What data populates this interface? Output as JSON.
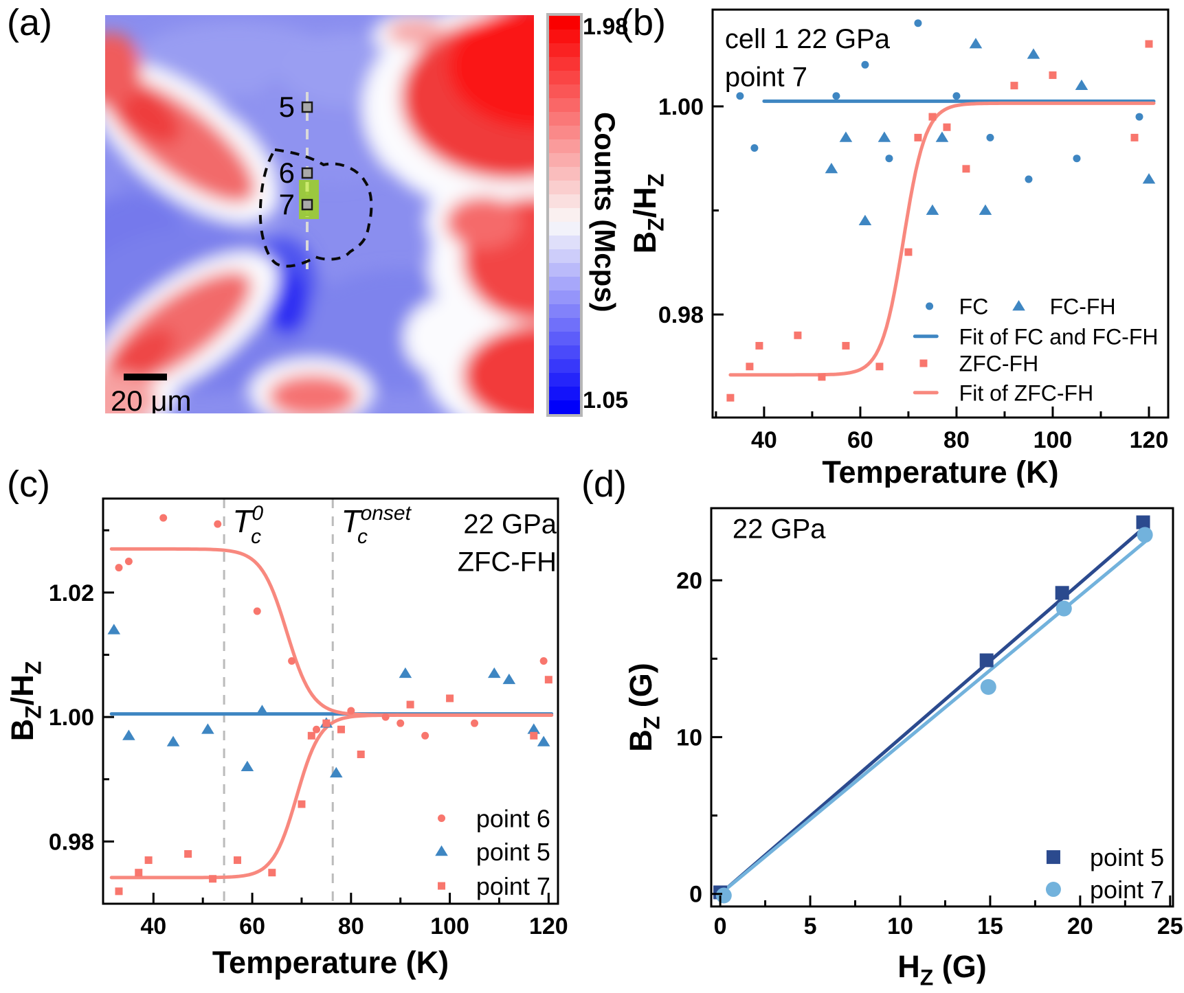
{
  "panels": {
    "a": {
      "letter": "(a)",
      "scale_bar_label": "20 μm",
      "marker_labels": [
        "5",
        "6",
        "7"
      ],
      "colorbar": {
        "title": "Counts (Mcps)",
        "max": "1.98",
        "min": "1.05"
      }
    },
    "b": {
      "letter": "(b)"
    },
    "c": {
      "letter": "(c)"
    },
    "d": {
      "letter": "(d)"
    }
  },
  "colors": {
    "blue": "#3e86c2",
    "salmon": "#f8766d",
    "salmon_fit": "#f8887e",
    "navy": "#2b4a8e",
    "light_blue": "#72b2dc",
    "vline_gray": "#bbbbbb"
  },
  "chart_data": [
    {
      "id": "a",
      "type": "heatmap",
      "description_visible_text": [],
      "colorbar": {
        "label": "Counts (Mcps)",
        "min": 1.05,
        "max": 1.98
      },
      "scale_bar": "20 μm",
      "points_of_interest": [
        "5",
        "6",
        "7"
      ]
    },
    {
      "id": "b",
      "type": "scatter",
      "annotation_lines": [
        "cell 1 22 GPa",
        "point 7"
      ],
      "ann_layout": {
        "anchor": "start",
        "fx": 0.027,
        "fy": 0.094,
        "step": 0.094
      },
      "xlabel_rich": [
        {
          "t": "Temperature (K)"
        }
      ],
      "ylabel_rich": [
        {
          "t": "B"
        },
        {
          "t": "Z",
          "s": "sub"
        },
        {
          "t": "/H"
        },
        {
          "t": "Z",
          "s": "sub"
        }
      ],
      "xlim": [
        29.3,
        124
      ],
      "ylim": [
        0.9701,
        1.0093
      ],
      "xticks": {
        "major": [
          [
            40,
            "40"
          ],
          [
            60,
            "60"
          ],
          [
            80,
            "80"
          ],
          [
            100,
            "100"
          ],
          [
            120,
            "120"
          ]
        ],
        "minor": [
          30,
          50,
          70,
          90,
          110
        ]
      },
      "yticks": {
        "major": [
          [
            0.98,
            "0.98"
          ],
          [
            1.0,
            "1.00"
          ]
        ],
        "minor": [
          0.99
        ]
      },
      "series": [
        {
          "kind": "line",
          "name": "Fit of FC and FC-FH",
          "color": "blue",
          "lw": 5,
          "x": [
            40,
            121
          ],
          "y": [
            1.0005,
            1.0005
          ]
        },
        {
          "kind": "sigmoid",
          "name": "Fit of ZFC-FH",
          "color": "salmon_fit",
          "lw": 5,
          "from": 0.9742,
          "to": 1.0003,
          "mid": 69,
          "w": 2.3,
          "xrange": [
            33,
            121
          ]
        },
        {
          "kind": "scatter",
          "name": "FC",
          "marker": "circle",
          "size": 11,
          "color": "blue",
          "points": [
            [
              35,
              1.001
            ],
            [
              38,
              0.996
            ],
            [
              55,
              1.001
            ],
            [
              61,
              1.004
            ],
            [
              66,
              0.995
            ],
            [
              72,
              1.008
            ],
            [
              80,
              1.001
            ],
            [
              87,
              0.997
            ],
            [
              95,
              0.993
            ],
            [
              105,
              0.995
            ],
            [
              118,
              0.999
            ]
          ]
        },
        {
          "kind": "scatter",
          "name": "FC-FH",
          "marker": "triangle",
          "size": 15,
          "color": "blue",
          "points": [
            [
              54,
              0.994
            ],
            [
              57,
              0.997
            ],
            [
              61,
              0.989
            ],
            [
              65,
              0.997
            ],
            [
              75,
              0.99
            ],
            [
              77,
              0.997
            ],
            [
              84,
              1.006
            ],
            [
              86,
              0.99
            ],
            [
              96,
              1.005
            ],
            [
              106,
              1.002
            ],
            [
              120,
              0.993
            ]
          ]
        },
        {
          "kind": "scatter",
          "name": "ZFC-FH",
          "marker": "square",
          "size": 11,
          "color": "salmon",
          "points": [
            [
              33,
              0.972
            ],
            [
              37,
              0.975
            ],
            [
              39,
              0.977
            ],
            [
              47,
              0.978
            ],
            [
              52,
              0.974
            ],
            [
              57,
              0.977
            ],
            [
              64,
              0.975
            ],
            [
              70,
              0.986
            ],
            [
              72,
              0.997
            ],
            [
              75,
              0.999
            ],
            [
              78,
              0.998
            ],
            [
              82,
              0.994
            ],
            [
              92,
              1.002
            ],
            [
              100,
              1.003
            ],
            [
              117,
              0.997
            ],
            [
              120,
              1.006
            ]
          ]
        }
      ],
      "legend": [
        {
          "marker": "circle",
          "color": "blue",
          "label": "FC",
          "size": 11,
          "mx": 0.476,
          "tx": 0.541,
          "fy": 0.727
        },
        {
          "marker": "triangle",
          "color": "blue",
          "label": "FC-FH",
          "size": 15,
          "mx": 0.672,
          "tx": 0.74,
          "fy": 0.727
        },
        {
          "marker": "hline",
          "color": "blue",
          "label": "Fit of FC and FC-FH",
          "mx": 0.468,
          "tx": 0.541,
          "fy": 0.801
        },
        {
          "marker": "square",
          "color": "salmon",
          "label": "ZFC-FH",
          "size": 11,
          "mx": 0.463,
          "tx": 0.541,
          "fy": 0.867
        },
        {
          "marker": "hline",
          "color": "salmon_fit",
          "label": "Fit of ZFC-FH",
          "mx": 0.468,
          "tx": 0.541,
          "fy": 0.939
        }
      ]
    },
    {
      "id": "c",
      "type": "scatter",
      "annotation_lines": [
        "22 GPa",
        "ZFC-FH"
      ],
      "ann_layout": {
        "anchor": "end",
        "fx": 0.997,
        "fy": 0.086,
        "step": 0.093
      },
      "xlabel_rich": [
        {
          "t": "Temperature (K)"
        }
      ],
      "ylabel_rich": [
        {
          "t": "B"
        },
        {
          "t": "Z",
          "s": "sub"
        },
        {
          "t": "/H"
        },
        {
          "t": "Z",
          "s": "sub"
        }
      ],
      "xlim": [
        29.8,
        121.9
      ],
      "ylim": [
        0.97,
        1.0351
      ],
      "xticks": {
        "major": [
          [
            40,
            "40"
          ],
          [
            60,
            "60"
          ],
          [
            80,
            "80"
          ],
          [
            100,
            "100"
          ],
          [
            120,
            "120"
          ]
        ],
        "minor": [
          50,
          70,
          90,
          110
        ]
      },
      "yticks": {
        "major": [
          [
            0.98,
            "0.98"
          ],
          [
            1.0,
            "1.00"
          ],
          [
            1.02,
            "1.02"
          ]
        ],
        "minor": [
          0.99,
          1.01,
          1.03
        ]
      },
      "vlines": [
        {
          "x": 54.3
        },
        {
          "x": 76.3
        }
      ],
      "vline_labels": [
        {
          "base": "T",
          "sub": "c",
          "sup": "0",
          "tx": 56,
          "fy": 0.083
        },
        {
          "base": "T",
          "sub": "c",
          "sup": "onset",
          "tx": 78,
          "fy": 0.083
        }
      ],
      "series": [
        {
          "kind": "line",
          "color": "blue",
          "lw": 5,
          "x": [
            31.5,
            120.6
          ],
          "y": [
            1.0005,
            1.0005
          ]
        },
        {
          "kind": "sigmoid",
          "color": "salmon_fit",
          "lw": 5,
          "from": 1.027,
          "to": 1.0003,
          "mid": 67,
          "w": 2.6,
          "xrange": [
            31.5,
            120.6
          ]
        },
        {
          "kind": "sigmoid",
          "color": "salmon_fit",
          "lw": 5,
          "from": 0.9742,
          "to": 1.0003,
          "mid": 69,
          "w": 2.4,
          "xrange": [
            31.5,
            120.6
          ]
        },
        {
          "kind": "scatter",
          "name": "point 6",
          "marker": "circle",
          "size": 11,
          "color": "salmon",
          "points": [
            [
              33,
              1.024
            ],
            [
              35,
              1.025
            ],
            [
              42,
              1.032
            ],
            [
              53,
              1.031
            ],
            [
              61,
              1.017
            ],
            [
              68,
              1.009
            ],
            [
              73,
              0.998
            ],
            [
              80,
              1.001
            ],
            [
              87,
              1.0
            ],
            [
              90,
              0.999
            ],
            [
              95,
              0.997
            ],
            [
              105,
              0.999
            ],
            [
              119,
              1.009
            ]
          ]
        },
        {
          "kind": "scatter",
          "name": "point 5",
          "marker": "triangle",
          "size": 15,
          "color": "blue",
          "points": [
            [
              32,
              1.014
            ],
            [
              35,
              0.997
            ],
            [
              44,
              0.996
            ],
            [
              51,
              0.998
            ],
            [
              59,
              0.992
            ],
            [
              62,
              1.001
            ],
            [
              75,
              0.999
            ],
            [
              77,
              0.991
            ],
            [
              91,
              1.007
            ],
            [
              109,
              1.007
            ],
            [
              112,
              1.006
            ],
            [
              117,
              0.998
            ],
            [
              119,
              0.996
            ]
          ]
        },
        {
          "kind": "scatter",
          "name": "point 7",
          "marker": "square",
          "size": 11,
          "color": "salmon",
          "points": [
            [
              33,
              0.972
            ],
            [
              37,
              0.975
            ],
            [
              39,
              0.977
            ],
            [
              47,
              0.978
            ],
            [
              52,
              0.974
            ],
            [
              57,
              0.977
            ],
            [
              64,
              0.975
            ],
            [
              70,
              0.986
            ],
            [
              72,
              0.997
            ],
            [
              75,
              0.999
            ],
            [
              78,
              0.998
            ],
            [
              82,
              0.994
            ],
            [
              92,
              1.002
            ],
            [
              100,
              1.003
            ],
            [
              117,
              0.997
            ],
            [
              120,
              1.006
            ]
          ]
        }
      ],
      "legend": [
        {
          "marker": "circle",
          "color": "salmon",
          "label": "point 6",
          "size": 11,
          "mx": 0.744,
          "tx": 0.82,
          "fy": 0.789
        },
        {
          "marker": "triangle",
          "color": "blue",
          "label": "point 5",
          "size": 15,
          "mx": 0.744,
          "tx": 0.82,
          "fy": 0.871
        },
        {
          "marker": "square",
          "color": "salmon",
          "label": "point 7",
          "size": 11,
          "mx": 0.744,
          "tx": 0.82,
          "fy": 0.956
        }
      ]
    },
    {
      "id": "d",
      "type": "scatter",
      "annotation_lines": [
        "22 GPa"
      ],
      "ann_layout": {
        "anchor": "start",
        "fx": 0.046,
        "fy": 0.075,
        "step": 0.09
      },
      "xlabel_rich": [
        {
          "t": "H"
        },
        {
          "t": "Z",
          "s": "sub"
        },
        {
          "t": " (G)"
        }
      ],
      "ylabel_rich": [
        {
          "t": "B"
        },
        {
          "t": "Z",
          "s": "sub"
        },
        {
          "t": " (G)"
        }
      ],
      "xlim": [
        -0.5,
        25.16
      ],
      "ylim": [
        -0.8,
        24.6
      ],
      "xticks": {
        "major": [
          [
            0,
            "0"
          ],
          [
            5,
            "5"
          ],
          [
            10,
            "10"
          ],
          [
            15,
            "15"
          ],
          [
            20,
            "20"
          ],
          [
            25,
            "25"
          ]
        ],
        "minor": [
          2.5,
          7.5,
          12.5,
          17.5,
          22.5
        ]
      },
      "yticks": {
        "major": [
          [
            0,
            "0"
          ],
          [
            10,
            "10"
          ],
          [
            20,
            "20"
          ]
        ],
        "minor": [
          5,
          15
        ]
      },
      "series": [
        {
          "kind": "line",
          "color": "navy",
          "lw": 5,
          "x": [
            0,
            23.7
          ],
          "y": [
            0,
            23.5
          ]
        },
        {
          "kind": "line",
          "color": "light_blue",
          "lw": 5,
          "x": [
            0,
            23.7
          ],
          "y": [
            0,
            22.55
          ]
        },
        {
          "kind": "scatter",
          "name": "point 5",
          "marker": "square",
          "size": 20,
          "color": "navy",
          "points": [
            [
              0,
              0.1
            ],
            [
              14.8,
              14.9
            ],
            [
              19,
              19.2
            ],
            [
              23.5,
              23.7
            ]
          ]
        },
        {
          "kind": "scatter",
          "name": "point 7",
          "marker": "circle",
          "size": 23,
          "color": "light_blue",
          "points": [
            [
              0.2,
              -0.1
            ],
            [
              14.9,
              13.2
            ],
            [
              19.1,
              18.2
            ],
            [
              23.6,
              22.9
            ]
          ]
        }
      ],
      "legend": [
        {
          "marker": "square",
          "color": "navy",
          "label": "point 5",
          "size": 20,
          "mx": 0.741,
          "tx": 0.82,
          "fy": 0.876
        },
        {
          "marker": "circle",
          "color": "light_blue",
          "label": "point 7",
          "size": 22,
          "mx": 0.741,
          "tx": 0.82,
          "fy": 0.957
        }
      ]
    }
  ]
}
